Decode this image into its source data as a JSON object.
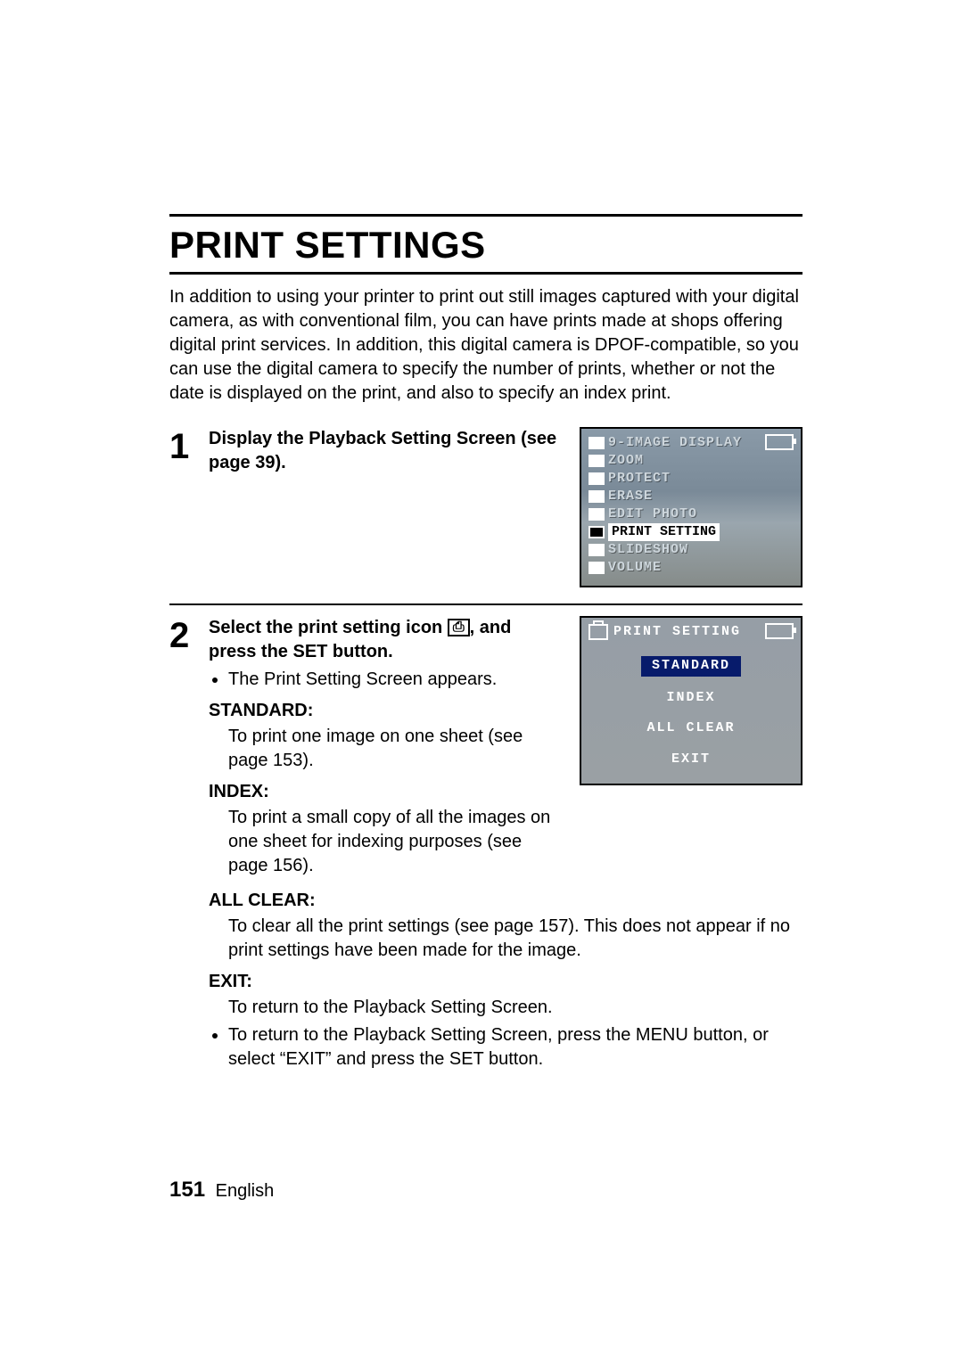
{
  "title": "PRINT SETTINGS",
  "intro": "In addition to using your printer to print out still images captured with your digital camera, as with conventional film, you can have prints made at shops offering digital print services. In addition, this digital camera is DPOF-compatible, so you can use the digital camera to specify the number of prints, whether or not the date is displayed on the print, and also to specify an index print.",
  "step1": {
    "num": "1",
    "text": "Display the Playback Setting Screen (see page 39)."
  },
  "screen1": {
    "items": [
      "9-IMAGE DISPLAY",
      "ZOOM",
      "PROTECT",
      "ERASE",
      "EDIT PHOTO",
      "PRINT SETTING",
      "SLIDESHOW",
      "VOLUME"
    ],
    "selected_index": 5
  },
  "step2": {
    "num": "2",
    "lead_a": "Select the print setting icon ",
    "lead_b": ", and press the SET button.",
    "bullet1": "The Print Setting Screen appears.",
    "defs": {
      "standard_label": "STANDARD:",
      "standard_body": "To print one image on one sheet (see page 153).",
      "index_label": "INDEX:",
      "index_body": "To print a small copy of all the images on one sheet for indexing purposes (see page 156).",
      "allclear_label": "ALL CLEAR:",
      "allclear_body": "To clear all the print settings (see page 157). This does not appear if no print settings have been made for the image.",
      "exit_label": "EXIT:",
      "exit_body": "To return to the Playback Setting Screen."
    },
    "bullet2": "To return to the Playback Setting Screen, press the MENU button, or select “EXIT” and press the SET button."
  },
  "screen2": {
    "header": "PRINT SETTING",
    "items": [
      "STANDARD",
      "INDEX",
      "ALL CLEAR",
      "EXIT"
    ],
    "selected_index": 0
  },
  "footer": {
    "page": "151",
    "lang": "English"
  },
  "colors": {
    "selection_blue": "#071b6b",
    "lcd_grey_top": "#8a9aa8",
    "lcd_grey_bot": "#9aa6ae"
  },
  "fonts": {
    "title_pt": 42,
    "body_pt": 20,
    "stepnum_pt": 40,
    "screen_font": "Courier New"
  }
}
